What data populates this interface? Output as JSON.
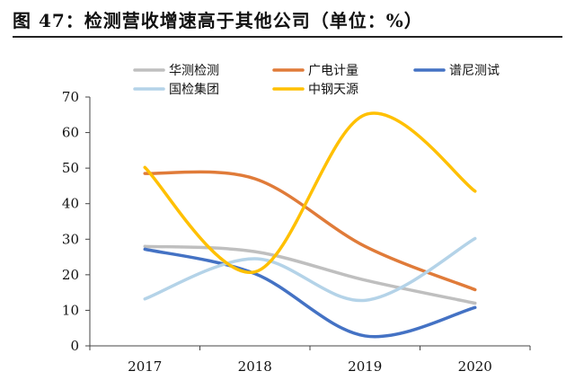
{
  "header": {
    "title": "图 47：检测营收增速高于其他公司（单位：%）"
  },
  "chart_data": {
    "type": "line",
    "title": "图 47：检测营收增速高于其他公司（单位：%）",
    "xlabel": "",
    "ylabel": "",
    "x": [
      "2017",
      "2018",
      "2019",
      "2020"
    ],
    "ylim": [
      0,
      70
    ],
    "yticks": [
      0,
      10,
      20,
      30,
      40,
      50,
      60,
      70
    ],
    "grid": false,
    "smooth": true,
    "legend_position": "top",
    "series": [
      {
        "name": "华测检测",
        "color": "#bfbfbf",
        "values": [
          28.0,
          26.5,
          18.5,
          12.0
        ]
      },
      {
        "name": "广电计量",
        "color": "#e07b39",
        "values": [
          48.5,
          47.0,
          28.0,
          15.8
        ]
      },
      {
        "name": "谱尼测试",
        "color": "#4472c4",
        "values": [
          27.2,
          20.3,
          2.8,
          10.8
        ]
      },
      {
        "name": "国检集团",
        "color": "#b4d3e8",
        "values": [
          13.2,
          24.5,
          12.8,
          30.2
        ]
      },
      {
        "name": "中钢天源",
        "color": "#ffc000",
        "values": [
          50.2,
          20.8,
          65.0,
          43.5
        ]
      }
    ]
  }
}
